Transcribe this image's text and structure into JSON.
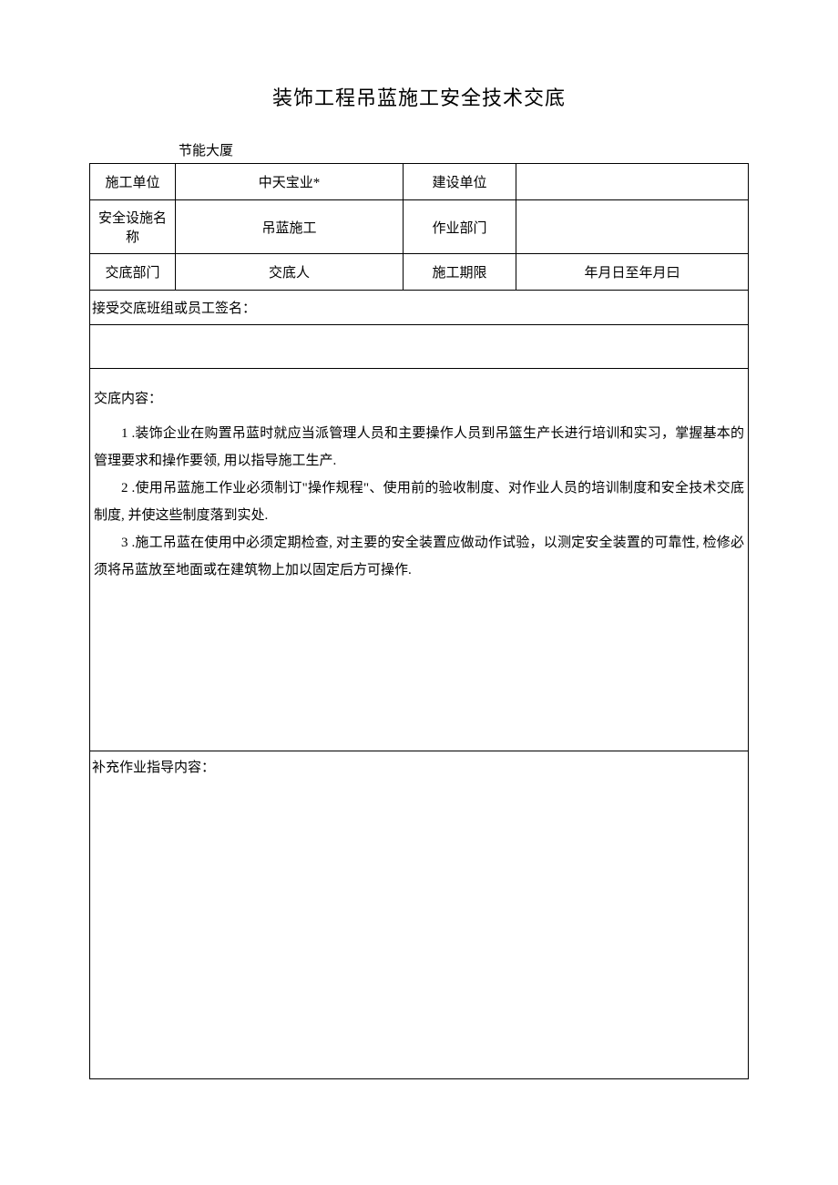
{
  "title": "装饰工程吊蓝施工安全技术交底",
  "subtitle": "节能大厦",
  "headers": {
    "row1": {
      "label1": "施工单位",
      "value1": "中天宝业*",
      "label2": "建设单位",
      "value2": ""
    },
    "row2": {
      "label1": "安全设施名称",
      "value1": "吊蓝施工",
      "label2": "作业部门",
      "value2": ""
    },
    "row3": {
      "label1": "交底部门",
      "value1": "交底人",
      "label2": "施工期限",
      "value2": "年月日至年月曰"
    }
  },
  "signRow": "接受交底班组或员工签名：",
  "content": {
    "header": "交底内容：",
    "item1": "1 .装饰企业在购置吊蓝时就应当派管理人员和主要操作人员到吊篮生产长进行培训和实习，掌握基本的管理要求和操作要领, 用以指导施工生产.",
    "item2": "2 .使用吊蓝施工作业必须制订\"操作规程\"、使用前的验收制度、对作业人员的培训制度和安全技术交底制度, 并使这些制度落到实处.",
    "item3": "3 .施工吊蓝在使用中必须定期检查, 对主要的安全装置应做动作试验，以测定安全装置的可靠性, 检修必须将吊蓝放至地面或在建筑物上加以固定后方可操作."
  },
  "supplement": "补充作业指导内容：",
  "colors": {
    "background": "#ffffff",
    "text": "#000000",
    "border": "#000000"
  },
  "fonts": {
    "title_size": 22,
    "body_size": 15,
    "family": "SimSun"
  }
}
